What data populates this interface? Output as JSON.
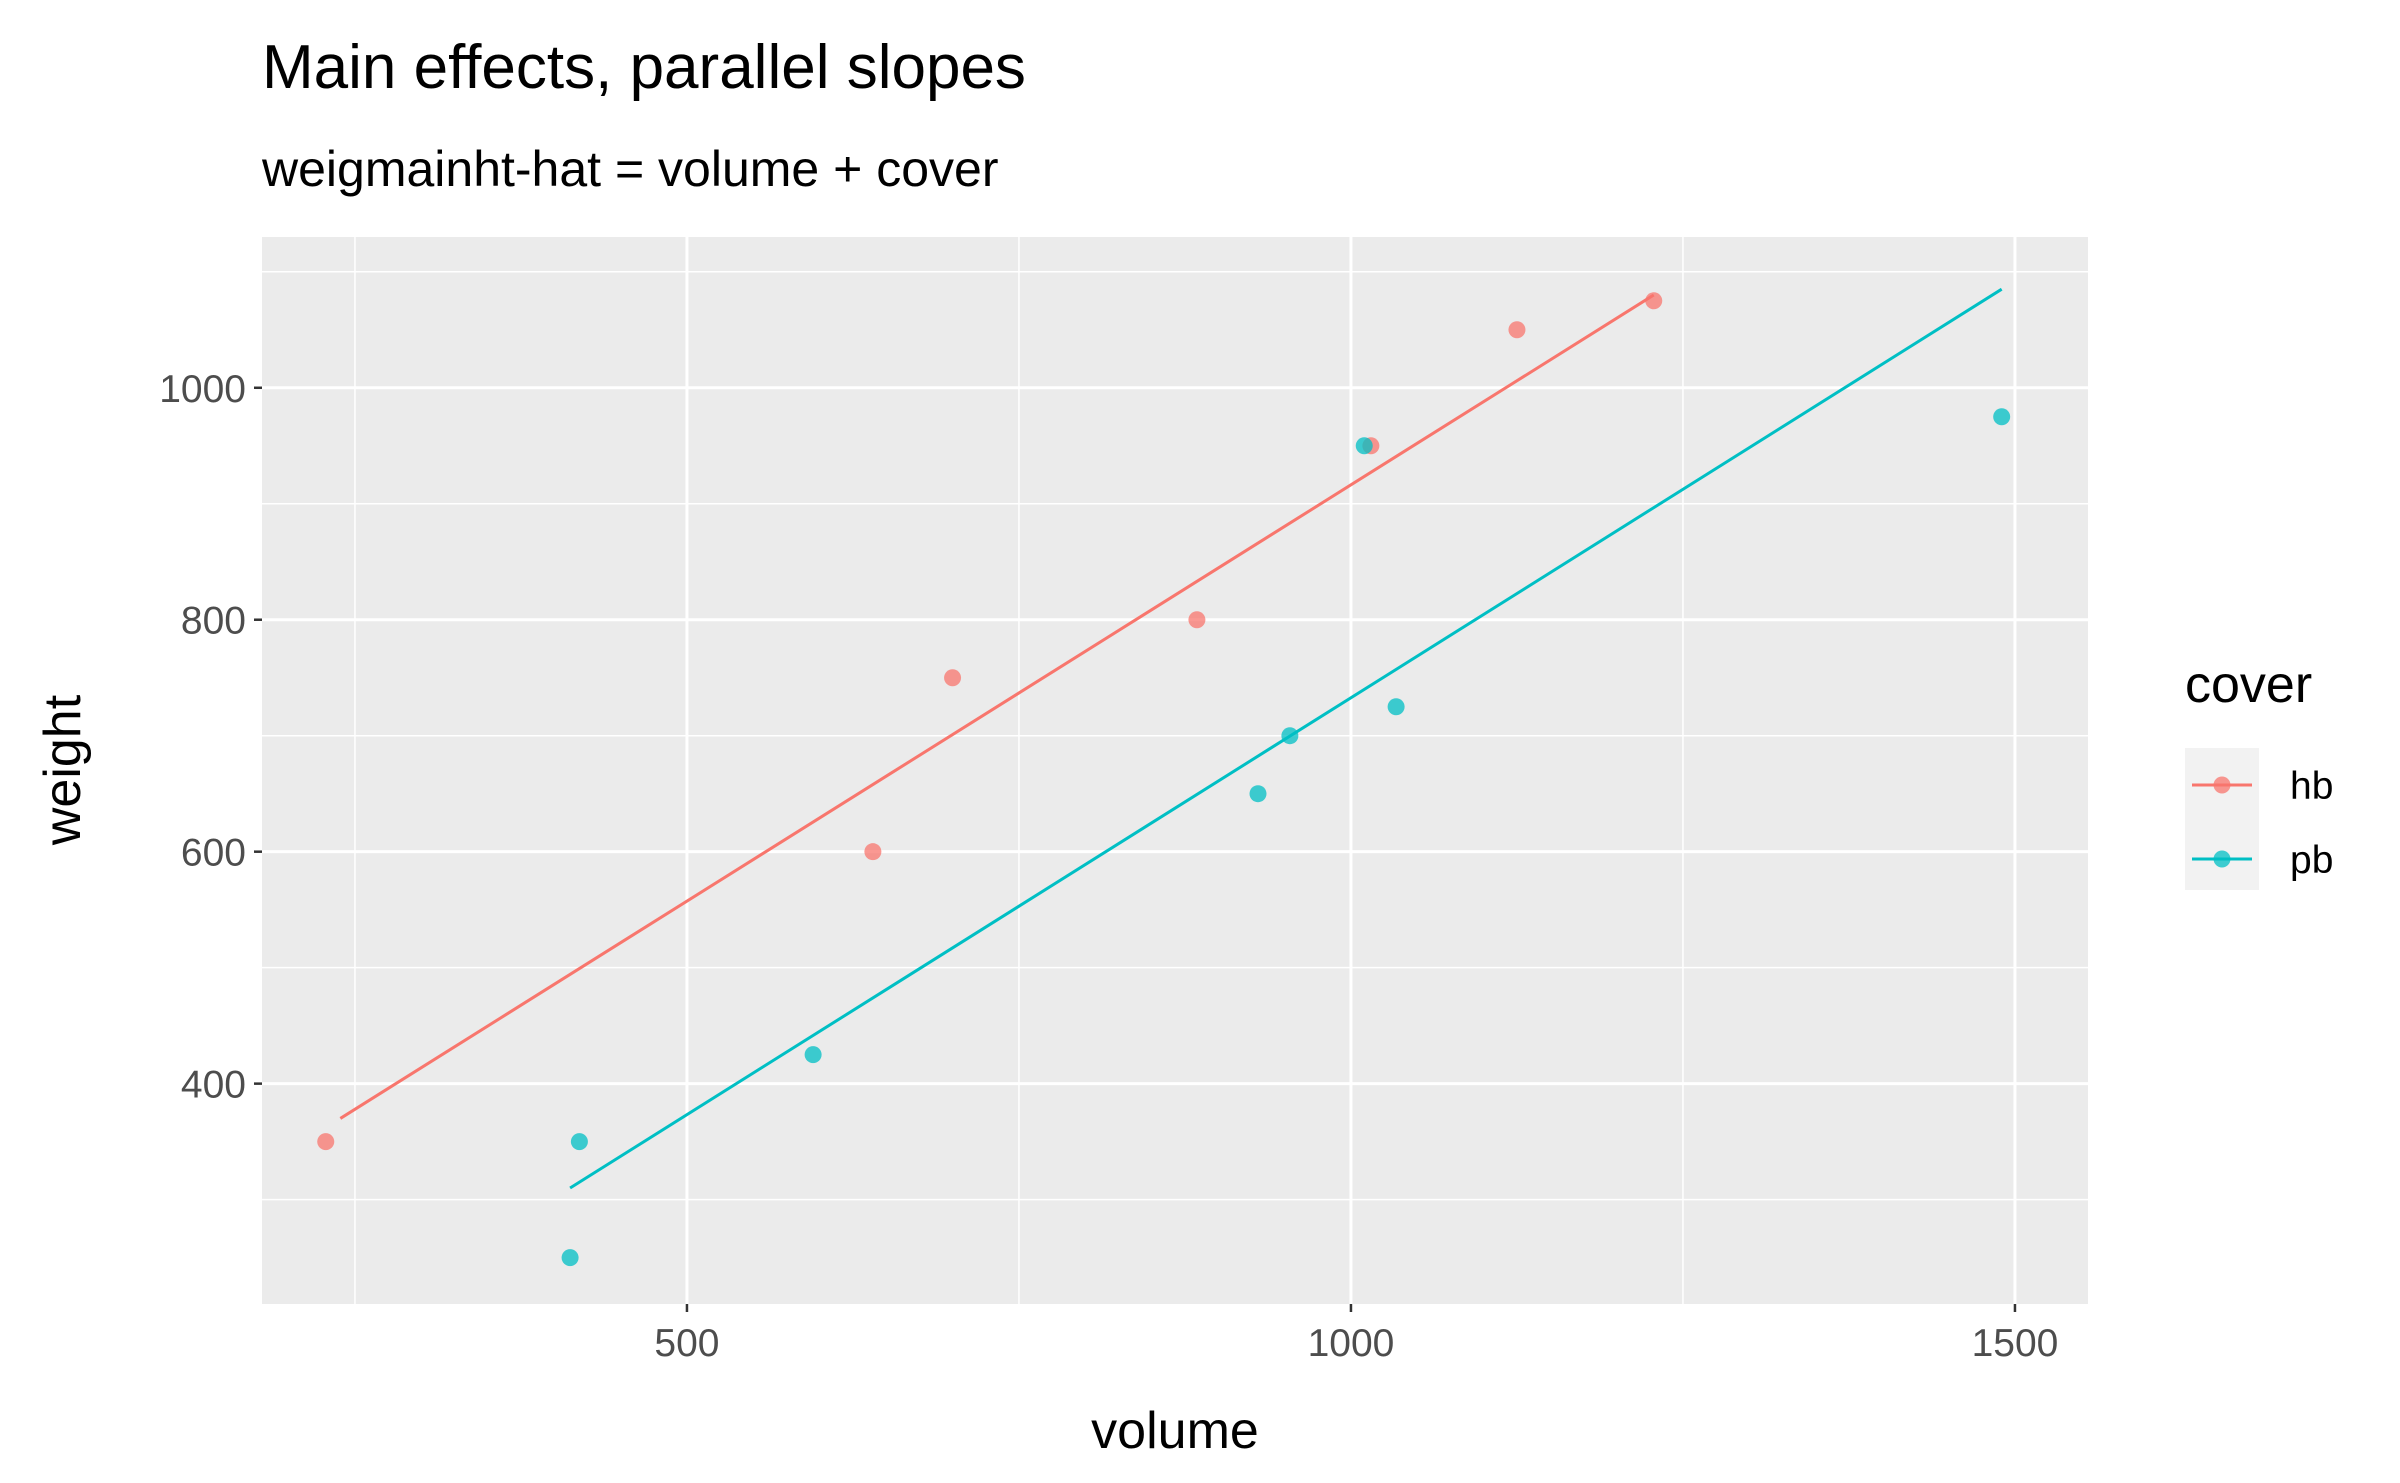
{
  "chart_data": {
    "type": "scatter",
    "title": "Main effects, parallel slopes",
    "subtitle": "weigmainht-hat = volume + cover",
    "xlabel": "volume",
    "ylabel": "weight",
    "xlim": [
      180,
      1555
    ],
    "ylim": [
      210,
      1130
    ],
    "x_ticks": [
      500,
      1000,
      1500
    ],
    "x_tick_labels": [
      "500",
      "1000",
      "1500"
    ],
    "y_ticks": [
      400,
      600,
      800,
      1000
    ],
    "y_tick_labels": [
      "400",
      "600",
      "800",
      "1000"
    ],
    "grid": true,
    "legend": {
      "title": "cover",
      "placement": "right"
    },
    "series": [
      {
        "name": "hb",
        "color": "#F8766D",
        "points": [
          {
            "x": 228,
            "y": 350
          },
          {
            "x": 640,
            "y": 600
          },
          {
            "x": 700,
            "y": 750
          },
          {
            "x": 884,
            "y": 800
          },
          {
            "x": 1015,
            "y": 950
          },
          {
            "x": 1125,
            "y": 1050
          },
          {
            "x": 1228,
            "y": 1075
          }
        ],
        "fit_line": [
          {
            "x": 239,
            "y": 370
          },
          {
            "x": 1228,
            "y": 1080
          }
        ]
      },
      {
        "name": "pb",
        "color": "#00BFC4",
        "points": [
          {
            "x": 412,
            "y": 250
          },
          {
            "x": 419,
            "y": 350
          },
          {
            "x": 595,
            "y": 425
          },
          {
            "x": 930,
            "y": 650
          },
          {
            "x": 954,
            "y": 700
          },
          {
            "x": 1010,
            "y": 950
          },
          {
            "x": 1034,
            "y": 725
          },
          {
            "x": 1490,
            "y": 975
          }
        ],
        "fit_line": [
          {
            "x": 412,
            "y": 310
          },
          {
            "x": 1490,
            "y": 1085
          }
        ]
      }
    ]
  }
}
